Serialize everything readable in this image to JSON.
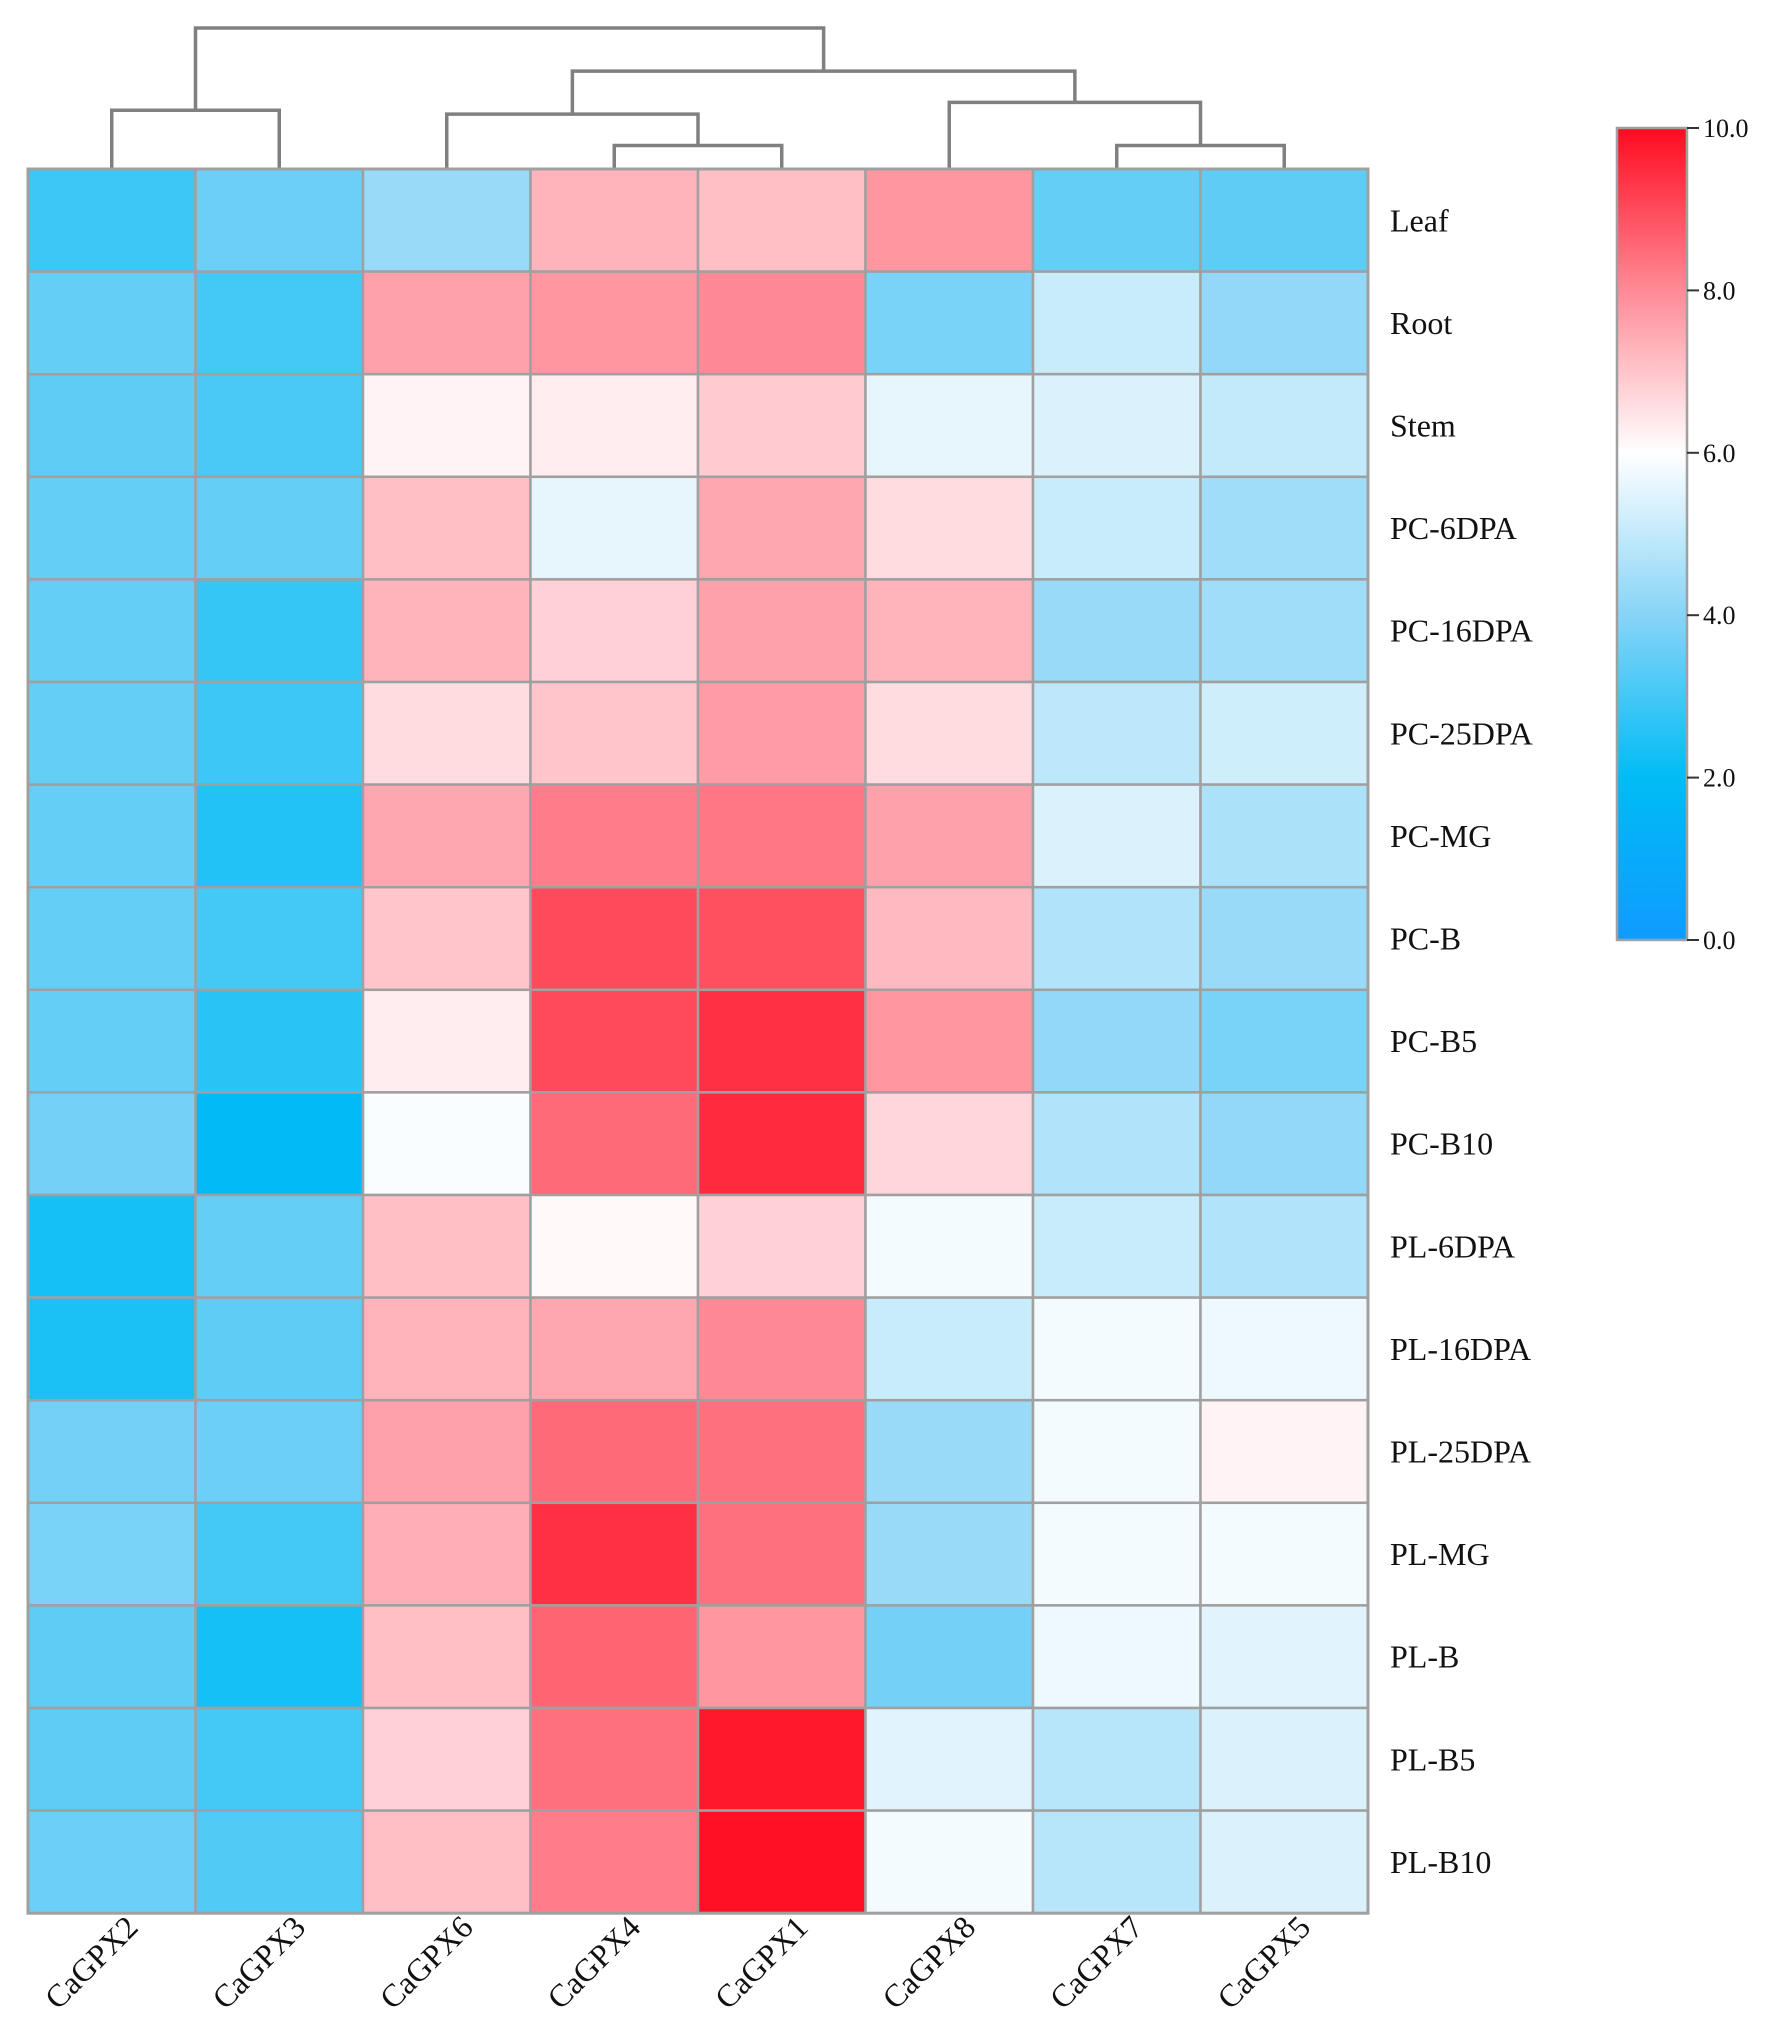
{
  "chart_data": {
    "type": "heatmap",
    "title": "",
    "columns": [
      "CaGPX2",
      "CaGPX3",
      "CaGPX6",
      "CaGPX4",
      "CaGPX1",
      "CaGPX8",
      "CaGPX7",
      "CaGPX5"
    ],
    "rows": [
      "Leaf",
      "Root",
      "Stem",
      "PC-6DPA",
      "PC-16DPA",
      "PC-25DPA",
      "PC-MG",
      "PC-B",
      "PC-B5",
      "PC-B10",
      "PL-6DPA",
      "PL-16DPA",
      "PL-25DPA",
      "PL-MG",
      "PL-B",
      "PL-B5",
      "PL-B10"
    ],
    "values": [
      [
        2.9,
        3.6,
        4.3,
        7.3,
        7.1,
        7.8,
        3.5,
        3.4
      ],
      [
        3.5,
        3.0,
        7.6,
        7.8,
        8.0,
        3.8,
        5.1,
        4.2
      ],
      [
        3.4,
        3.1,
        6.2,
        6.3,
        6.9,
        5.6,
        5.4,
        5.0
      ],
      [
        3.5,
        3.5,
        7.1,
        5.6,
        7.5,
        6.6,
        5.1,
        4.4
      ],
      [
        3.5,
        2.8,
        7.3,
        6.8,
        7.6,
        7.3,
        4.3,
        4.4
      ],
      [
        3.5,
        2.9,
        6.6,
        7.0,
        7.7,
        6.6,
        4.9,
        5.2
      ],
      [
        3.5,
        2.5,
        7.5,
        8.2,
        8.3,
        7.6,
        5.4,
        4.6
      ],
      [
        3.5,
        3.0,
        7.0,
        9.0,
        8.9,
        7.2,
        4.7,
        4.3
      ],
      [
        3.5,
        2.6,
        6.3,
        9.0,
        9.4,
        7.8,
        4.2,
        3.8
      ],
      [
        3.7,
        1.9,
        5.9,
        8.5,
        9.5,
        6.7,
        4.7,
        4.2
      ],
      [
        2.3,
        3.5,
        7.1,
        6.1,
        6.8,
        5.8,
        5.1,
        4.7
      ],
      [
        2.4,
        3.4,
        7.3,
        7.5,
        8.0,
        5.1,
        5.8,
        5.7
      ],
      [
        3.7,
        3.6,
        7.6,
        8.5,
        8.4,
        4.3,
        5.8,
        6.2
      ],
      [
        3.8,
        3.0,
        7.4,
        9.4,
        8.4,
        4.3,
        5.8,
        5.8
      ],
      [
        3.4,
        2.3,
        7.1,
        8.6,
        7.8,
        3.7,
        5.7,
        5.5
      ],
      [
        3.4,
        3.0,
        6.8,
        8.4,
        9.8,
        5.5,
        4.8,
        5.4
      ],
      [
        3.6,
        3.2,
        7.1,
        8.2,
        9.9,
        5.8,
        4.8,
        5.4
      ]
    ],
    "colorbar": {
      "min": 0,
      "max": 10,
      "ticks": [
        0,
        2,
        4,
        6,
        8,
        10
      ],
      "tick_labels": [
        "0.0",
        "2.0",
        "4.0",
        "6.0",
        "8.0",
        "10.0"
      ],
      "colors": [
        "#0f9bff",
        "#00bcf5",
        "#87d4f7",
        "#ffffff",
        "#ff8a96",
        "#ff0a1f"
      ]
    },
    "column_dendrogram": {
      "merges": [
        [
          0,
          1
        ],
        [
          3,
          4
        ],
        [
          2,
          9
        ],
        [
          6,
          7
        ],
        [
          5,
          11
        ],
        [
          10,
          12
        ],
        [
          8,
          13
        ]
      ],
      "heights": [
        1.5,
        0.6,
        1.4,
        0.6,
        1.7,
        2.5,
        3.6
      ]
    },
    "grid": false,
    "legend": "colorbar-right"
  }
}
